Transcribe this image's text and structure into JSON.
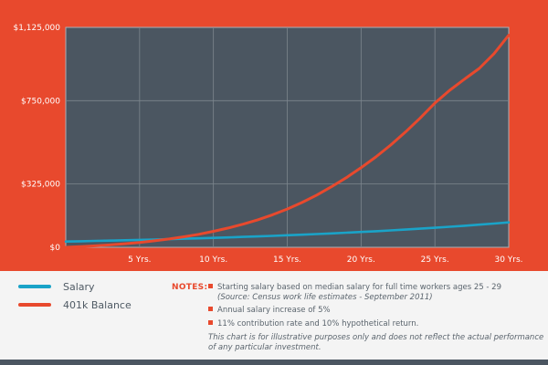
{
  "chart_data": {
    "type": "line",
    "x": [
      0,
      1,
      2,
      3,
      4,
      5,
      6,
      7,
      8,
      9,
      10,
      11,
      12,
      13,
      14,
      15,
      16,
      17,
      18,
      19,
      20,
      21,
      22,
      23,
      24,
      25,
      26,
      27,
      28,
      29,
      30
    ],
    "xticks": [
      5,
      10,
      15,
      20,
      25,
      30
    ],
    "xtick_labels": [
      "5 Yrs.",
      "10 Yrs.",
      "15 Yrs.",
      "20 Yrs.",
      "25 Yrs.",
      "30 Yrs."
    ],
    "xlim": [
      0,
      30
    ],
    "ylim": [
      0,
      1125000
    ],
    "yticks": [
      0,
      325000,
      750000,
      1125000
    ],
    "ytick_labels": [
      "$0",
      "$325,000",
      "$750,000",
      "$1,125,000"
    ],
    "grid": true,
    "series": [
      {
        "name": "Salary",
        "color": "#1aa3c8",
        "values": [
          29500,
          31000,
          32500,
          34200,
          35900,
          37700,
          39600,
          41600,
          43700,
          45900,
          48200,
          50600,
          53100,
          55700,
          58500,
          61400,
          64500,
          67700,
          71100,
          74700,
          78400,
          82300,
          86400,
          90700,
          95200,
          100000,
          105000,
          110000,
          115600,
          121400,
          127400
        ]
      },
      {
        "name": "401k Balance",
        "color": "#e8492d",
        "values": [
          0,
          3400,
          7300,
          12200,
          18000,
          24800,
          33000,
          42500,
          53600,
          66500,
          81500,
          98500,
          118000,
          140500,
          166000,
          195500,
          229000,
          267000,
          310000,
          356000,
          407000,
          462000,
          523000,
          589000,
          661000,
          738000,
          803000,
          860000,
          915000,
          990000,
          1085000
        ]
      }
    ]
  },
  "legend": {
    "items": [
      {
        "label": "Salary",
        "color": "#1aa3c8"
      },
      {
        "label": "401k Balance",
        "color": "#e8492d"
      }
    ]
  },
  "notes": {
    "heading": "NOTES:",
    "items": [
      {
        "text": "Starting salary based on median salary for full time workers ages 25 - 29",
        "source": "(Source: Census work life estimates - September 2011)"
      },
      {
        "text": "Annual salary increase of 5%"
      },
      {
        "text": "11% contribution rate and 10% hypothetical return."
      }
    ],
    "disclaimer": "This chart is for illustrative purposes only and does not reflect the actual performance of any particular investment."
  },
  "colors": {
    "background": "#e8492d",
    "plot_area": "#4b5661",
    "grid": "#7d868e",
    "legend_panel": "#f4f4f4"
  }
}
